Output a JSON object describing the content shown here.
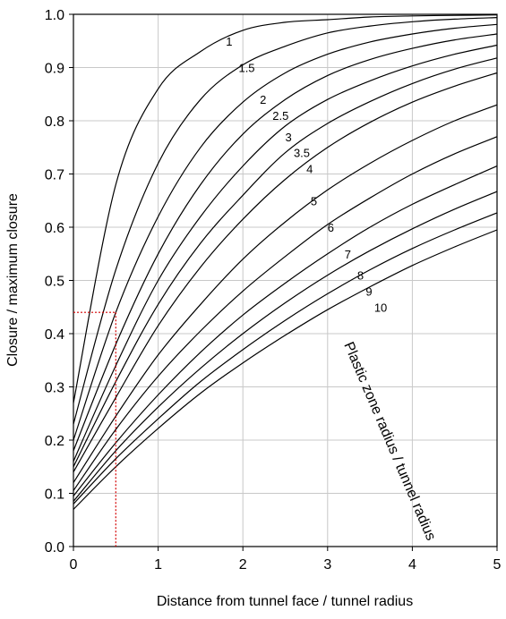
{
  "chart_data": {
    "type": "line",
    "xlabel": "Distance from tunnel face / tunnel radius",
    "ylabel": "Closure / maximum closure",
    "annotation": "Plastic zone radius / tunnel radius",
    "xlim": [
      0,
      5
    ],
    "ylim": [
      0,
      1
    ],
    "grid": true,
    "xticks": [
      "0",
      "1",
      "2",
      "3",
      "4",
      "5"
    ],
    "yticks": [
      "0.0",
      "0.1",
      "0.2",
      "0.3",
      "0.4",
      "0.5",
      "0.6",
      "0.7",
      "0.8",
      "0.9",
      "1.0"
    ],
    "curve_x": [
      0,
      0.5,
      1,
      1.5,
      2,
      2.5,
      3,
      3.5,
      4,
      4.5,
      5
    ],
    "series": [
      {
        "name": "1",
        "label_at": [
          1.8,
          0.95
        ],
        "values": [
          0.27,
          0.68,
          0.86,
          0.93,
          0.97,
          0.985,
          0.99,
          0.995,
          0.997,
          0.998,
          0.999
        ]
      },
      {
        "name": "1.5",
        "label_at": [
          1.95,
          0.9
        ],
        "values": [
          0.23,
          0.52,
          0.72,
          0.84,
          0.905,
          0.94,
          0.965,
          0.978,
          0.986,
          0.991,
          0.994
        ]
      },
      {
        "name": "2",
        "label_at": [
          2.2,
          0.84
        ],
        "values": [
          0.2,
          0.44,
          0.62,
          0.75,
          0.835,
          0.89,
          0.925,
          0.948,
          0.963,
          0.974,
          0.981
        ]
      },
      {
        "name": "2.5",
        "label_at": [
          2.35,
          0.81
        ],
        "values": [
          0.18,
          0.38,
          0.55,
          0.68,
          0.775,
          0.84,
          0.885,
          0.915,
          0.936,
          0.952,
          0.963
        ]
      },
      {
        "name": "3",
        "label_at": [
          2.5,
          0.77
        ],
        "values": [
          0.16,
          0.34,
          0.5,
          0.62,
          0.715,
          0.79,
          0.84,
          0.875,
          0.903,
          0.925,
          0.942
        ]
      },
      {
        "name": "3.5",
        "label_at": [
          2.6,
          0.74
        ],
        "values": [
          0.15,
          0.31,
          0.455,
          0.57,
          0.66,
          0.74,
          0.795,
          0.836,
          0.87,
          0.897,
          0.918
        ]
      },
      {
        "name": "4",
        "label_at": [
          2.75,
          0.71
        ],
        "values": [
          0.14,
          0.28,
          0.415,
          0.525,
          0.615,
          0.69,
          0.75,
          0.797,
          0.835,
          0.865,
          0.89
        ]
      },
      {
        "name": "5",
        "label_at": [
          2.8,
          0.65
        ],
        "values": [
          0.12,
          0.245,
          0.36,
          0.455,
          0.54,
          0.61,
          0.67,
          0.72,
          0.763,
          0.8,
          0.83
        ]
      },
      {
        "name": "6",
        "label_at": [
          3.0,
          0.6
        ],
        "values": [
          0.105,
          0.22,
          0.32,
          0.405,
          0.48,
          0.545,
          0.605,
          0.655,
          0.7,
          0.738,
          0.77
        ]
      },
      {
        "name": "7",
        "label_at": [
          3.2,
          0.55
        ],
        "values": [
          0.095,
          0.195,
          0.285,
          0.365,
          0.435,
          0.495,
          0.55,
          0.6,
          0.643,
          0.68,
          0.715
        ]
      },
      {
        "name": "8",
        "label_at": [
          3.35,
          0.51
        ],
        "values": [
          0.085,
          0.18,
          0.262,
          0.335,
          0.4,
          0.458,
          0.51,
          0.556,
          0.597,
          0.634,
          0.667
        ]
      },
      {
        "name": "9",
        "label_at": [
          3.45,
          0.48
        ],
        "values": [
          0.08,
          0.165,
          0.24,
          0.31,
          0.37,
          0.425,
          0.475,
          0.52,
          0.56,
          0.595,
          0.627
        ]
      },
      {
        "name": "10",
        "label_at": [
          3.55,
          0.45
        ],
        "values": [
          0.07,
          0.15,
          0.222,
          0.288,
          0.345,
          0.397,
          0.445,
          0.488,
          0.528,
          0.563,
          0.595
        ]
      }
    ],
    "reference": {
      "x": 0.5,
      "y": 0.44,
      "color": "#d40000"
    }
  }
}
